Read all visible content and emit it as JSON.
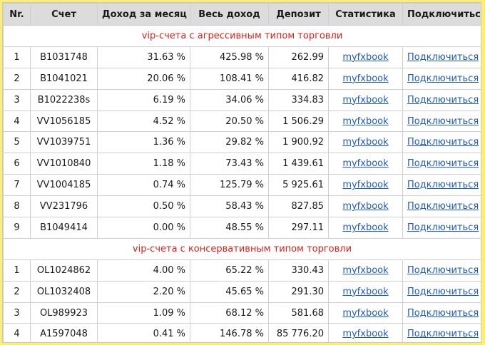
{
  "headers": [
    "Nr.",
    "Счет",
    "Доход за месяц",
    "Весь доход",
    "Депозит",
    "Статистика",
    "Подключиться"
  ],
  "sections": [
    {
      "title": "vip-счета с агрессивным типом торговли",
      "rows": [
        {
          "nr": "1",
          "account": "B1031748",
          "monthly": "31.63 %",
          "total": "425.98 %",
          "deposit": "262.99",
          "stats": "myfxbook",
          "connect": "Подключиться"
        },
        {
          "nr": "2",
          "account": "B1041021",
          "monthly": "20.06 %",
          "total": "108.41 %",
          "deposit": "416.82",
          "stats": "myfxbook",
          "connect": "Подключиться"
        },
        {
          "nr": "3",
          "account": "B1022238s",
          "monthly": "6.19 %",
          "total": "34.06 %",
          "deposit": "334.83",
          "stats": "myfxbook",
          "connect": "Подключиться"
        },
        {
          "nr": "4",
          "account": "VV1056185",
          "monthly": "4.52 %",
          "total": "20.50 %",
          "deposit": "1 506.29",
          "stats": "myfxbook",
          "connect": "Подключиться"
        },
        {
          "nr": "5",
          "account": "VV1039751",
          "monthly": "1.36 %",
          "total": "29.82 %",
          "deposit": "1 900.92",
          "stats": "myfxbook",
          "connect": "Подключиться"
        },
        {
          "nr": "6",
          "account": "VV1010840",
          "monthly": "1.18 %",
          "total": "73.43 %",
          "deposit": "1 439.61",
          "stats": "myfxbook",
          "connect": "Подключиться"
        },
        {
          "nr": "7",
          "account": "VV1004185",
          "monthly": "0.74 %",
          "total": "125.79 %",
          "deposit": "5 925.61",
          "stats": "myfxbook",
          "connect": "Подключиться"
        },
        {
          "nr": "8",
          "account": "VV231796",
          "monthly": "0.50 %",
          "total": "58.43 %",
          "deposit": "827.85",
          "stats": "myfxbook",
          "connect": "Подключиться"
        },
        {
          "nr": "9",
          "account": "B1049414",
          "monthly": "0.00 %",
          "total": "48.55 %",
          "deposit": "297.11",
          "stats": "myfxbook",
          "connect": "Подключиться"
        }
      ]
    },
    {
      "title": "vip-счета с консервативным типом торговли",
      "rows": [
        {
          "nr": "1",
          "account": "OL1024862",
          "monthly": "4.00 %",
          "total": "65.22 %",
          "deposit": "330.43",
          "stats": "myfxbook",
          "connect": "Подключиться"
        },
        {
          "nr": "2",
          "account": "OL1032408",
          "monthly": "2.20 %",
          "total": "45.65 %",
          "deposit": "291.30",
          "stats": "myfxbook",
          "connect": "Подключиться"
        },
        {
          "nr": "3",
          "account": "OL989923",
          "monthly": "1.09 %",
          "total": "68.12 %",
          "deposit": "581.68",
          "stats": "myfxbook",
          "connect": "Подключиться"
        },
        {
          "nr": "4",
          "account": "A1597048",
          "monthly": "0.41 %",
          "total": "146.78 %",
          "deposit": "85 776.20",
          "stats": "myfxbook",
          "connect": "Подключиться"
        }
      ]
    }
  ],
  "colors": {
    "background": "#fbee77",
    "header_bg": "#dcdcdc",
    "section_title": "#e0201b",
    "link": "#1e5bb8"
  }
}
